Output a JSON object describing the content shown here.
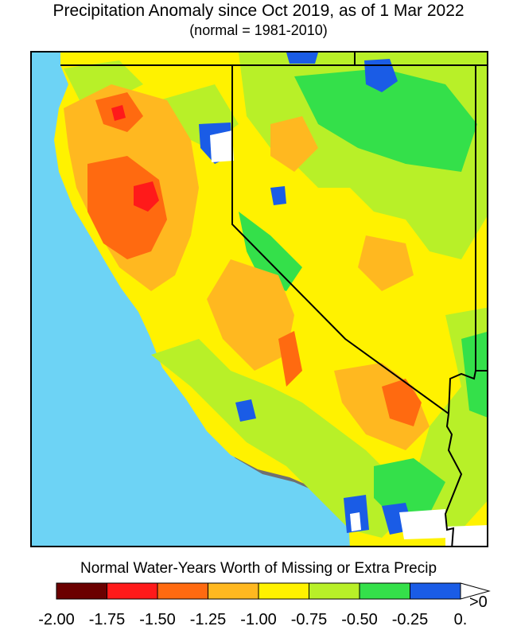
{
  "title": "Precipitation Anomaly since Oct 2019, as of 1 Mar 2022",
  "subtitle": "(normal = 1981-2010)",
  "legend": {
    "title": "Normal Water-Years Worth of Missing or Extra Precip",
    "ticks": [
      "-2.00",
      "-1.75",
      "-1.50",
      "-1.25",
      "-1.00",
      "-0.75",
      "-0.50",
      "-0.25",
      "0."
    ],
    "overflow_label": ">0",
    "bins": [
      {
        "range": "-2.00 to -1.75",
        "color": "#6b0000"
      },
      {
        "range": "-1.75 to -1.50",
        "color": "#ff1a1a"
      },
      {
        "range": "-1.50 to -1.25",
        "color": "#ff6a10"
      },
      {
        "range": "-1.25 to -1.00",
        "color": "#ffb820"
      },
      {
        "range": "-1.00 to -0.75",
        "color": "#fff200"
      },
      {
        "range": "-0.75 to -0.50",
        "color": "#b8f028"
      },
      {
        "range": "-0.50 to -0.25",
        "color": "#34e04a"
      },
      {
        "range": "-0.25 to 0.",
        "color": "#1a5ce6"
      },
      {
        "range": ">0",
        "color": "#ffffff"
      }
    ]
  },
  "map": {
    "region": "California and Nevada",
    "ocean_color": "#6dd3f5",
    "no_data_color": "#ffffff",
    "state_border_color": "#000000"
  }
}
